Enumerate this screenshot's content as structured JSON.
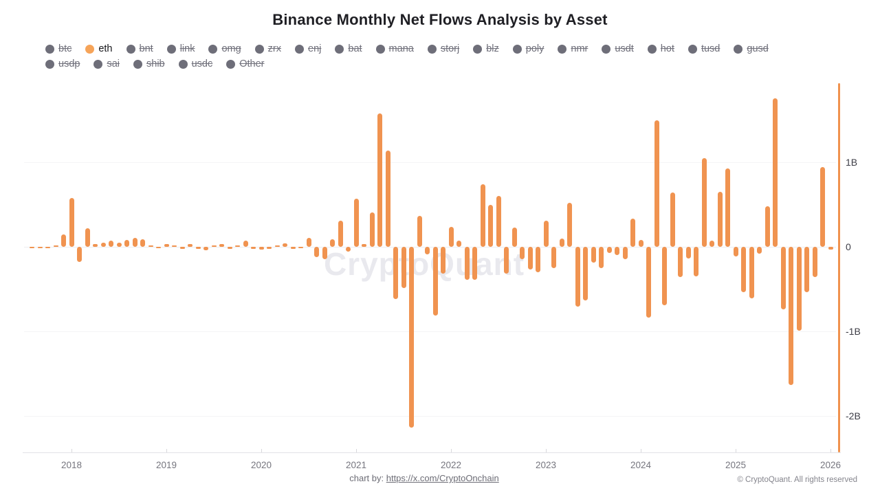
{
  "title": "Binance Monthly Net Flows Analysis by Asset",
  "watermark": "CryptoQuant",
  "colors": {
    "bar": "#f09350",
    "legend_active_dot": "#f6a459",
    "legend_inactive_dot": "#6e6e79",
    "axis_accent": "#f0924e"
  },
  "legend": {
    "rows": [
      [
        {
          "label": "btc",
          "active": false
        },
        {
          "label": "eth",
          "active": true
        },
        {
          "label": "bnt",
          "active": false
        },
        {
          "label": "link",
          "active": false
        },
        {
          "label": "omg",
          "active": false
        },
        {
          "label": "zrx",
          "active": false
        },
        {
          "label": "enj",
          "active": false
        },
        {
          "label": "bat",
          "active": false
        },
        {
          "label": "mana",
          "active": false
        },
        {
          "label": "storj",
          "active": false
        },
        {
          "label": "blz",
          "active": false
        },
        {
          "label": "poly",
          "active": false
        },
        {
          "label": "nmr",
          "active": false
        },
        {
          "label": "usdt",
          "active": false
        },
        {
          "label": "hot",
          "active": false
        },
        {
          "label": "tusd",
          "active": false
        },
        {
          "label": "gusd",
          "active": false
        }
      ],
      [
        {
          "label": "usdp",
          "active": false
        },
        {
          "label": "sai",
          "active": false
        },
        {
          "label": "shib",
          "active": false
        },
        {
          "label": "usdc",
          "active": false
        },
        {
          "label": "Other",
          "active": false
        }
      ]
    ]
  },
  "chart_data": {
    "type": "bar",
    "title": "Binance Monthly Net Flows Analysis by Asset",
    "series_name": "eth",
    "unit": "B (billions USD)",
    "ylabel": "",
    "xlabel": "",
    "ylim": [
      -2.3,
      1.95
    ],
    "grid": true,
    "legend_position": "top-left",
    "yticks": [
      {
        "label": "1B",
        "value": 1
      },
      {
        "label": "0",
        "value": 0
      },
      {
        "label": "-1B",
        "value": -1
      },
      {
        "label": "-2B",
        "value": -2
      }
    ],
    "xticks": [
      "2018",
      "2019",
      "2020",
      "2021",
      "2022",
      "2023",
      "2024",
      "2025",
      "2026"
    ],
    "months": [
      "2017-08",
      "2017-09",
      "2017-10",
      "2017-11",
      "2017-12",
      "2018-01",
      "2018-02",
      "2018-03",
      "2018-04",
      "2018-05",
      "2018-06",
      "2018-07",
      "2018-08",
      "2018-09",
      "2018-10",
      "2018-11",
      "2018-12",
      "2019-01",
      "2019-02",
      "2019-03",
      "2019-04",
      "2019-05",
      "2019-06",
      "2019-07",
      "2019-08",
      "2019-09",
      "2019-10",
      "2019-11",
      "2019-12",
      "2020-01",
      "2020-02",
      "2020-03",
      "2020-04",
      "2020-05",
      "2020-06",
      "2020-07",
      "2020-08",
      "2020-09",
      "2020-10",
      "2020-11",
      "2020-12",
      "2021-01",
      "2021-02",
      "2021-03",
      "2021-04",
      "2021-05",
      "2021-06",
      "2021-07",
      "2021-08",
      "2021-09",
      "2021-10",
      "2021-11",
      "2021-12",
      "2022-01",
      "2022-02",
      "2022-03",
      "2022-04",
      "2022-05",
      "2022-06",
      "2022-07",
      "2022-08",
      "2022-09",
      "2022-10",
      "2022-11",
      "2022-12",
      "2023-01",
      "2023-02",
      "2023-03",
      "2023-04",
      "2023-05",
      "2023-06",
      "2023-07",
      "2023-08",
      "2023-09",
      "2023-10",
      "2023-11",
      "2023-12",
      "2024-01",
      "2024-02",
      "2024-03",
      "2024-04",
      "2024-05",
      "2024-06",
      "2024-07",
      "2024-08",
      "2024-09",
      "2024-10",
      "2024-11",
      "2024-12",
      "2025-01",
      "2025-02",
      "2025-03",
      "2025-04",
      "2025-05",
      "2025-06",
      "2025-07",
      "2025-08",
      "2025-09",
      "2025-10",
      "2025-11",
      "2025-12",
      "2026-01"
    ],
    "values": [
      -0.01,
      -0.015,
      -0.01,
      0.02,
      0.15,
      0.58,
      -0.18,
      0.22,
      0.03,
      0.05,
      0.07,
      0.05,
      0.08,
      0.11,
      0.09,
      0.02,
      -0.01,
      0.03,
      0.02,
      -0.02,
      0.035,
      -0.02,
      -0.04,
      0.02,
      0.03,
      -0.02,
      0.01,
      0.07,
      -0.02,
      -0.03,
      -0.02,
      0.01,
      0.04,
      -0.02,
      -0.01,
      0.11,
      -0.12,
      -0.15,
      0.09,
      0.31,
      -0.06,
      0.57,
      0.03,
      0.41,
      1.58,
      1.14,
      -0.62,
      -0.49,
      -2.14,
      0.37,
      -0.09,
      -0.81,
      -0.32,
      0.24,
      0.07,
      -0.39,
      -0.39,
      0.74,
      0.5,
      0.6,
      -0.32,
      0.23,
      -0.15,
      -0.27,
      -0.3,
      0.31,
      -0.25,
      0.1,
      0.52,
      -0.71,
      -0.63,
      -0.19,
      -0.25,
      -0.07,
      -0.1,
      -0.15,
      0.33,
      0.08,
      -0.84,
      1.5,
      -0.69,
      0.64,
      -0.36,
      -0.14,
      -0.35,
      1.05,
      0.07,
      0.65,
      0.93,
      -0.11,
      -0.54,
      -0.61,
      -0.08,
      0.48,
      1.76,
      -0.74,
      -1.63,
      -0.99,
      -0.54,
      -0.36,
      0.94,
      -0.03
    ]
  },
  "footer": {
    "credit_prefix": "chart by: ",
    "credit_link": "https://x.com/CryptoOnchain",
    "copyright": "© CryptoQuant. All rights reserved"
  }
}
